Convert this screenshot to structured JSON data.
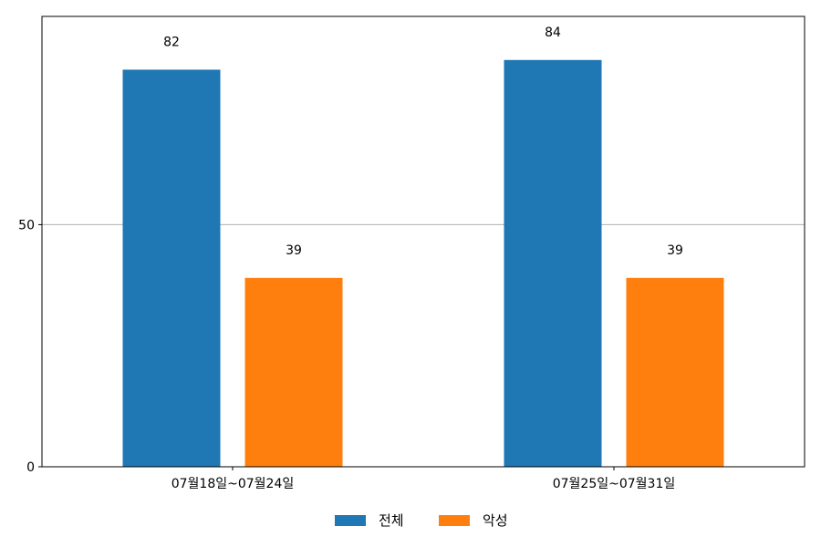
{
  "chart_data": {
    "type": "bar",
    "categories": [
      "07월18일~07월24일",
      "07월25일~07월31일"
    ],
    "series": [
      {
        "name": "전체",
        "values": [
          82,
          84
        ],
        "color": "#1f77b4"
      },
      {
        "name": "악성",
        "values": [
          39,
          39
        ],
        "color": "#ff7f0e"
      }
    ],
    "ylim": [
      0,
      93
    ],
    "yticks": [
      0,
      50
    ],
    "grid": "horizontal",
    "legend_position": "bottom-center",
    "data_labels": true
  }
}
